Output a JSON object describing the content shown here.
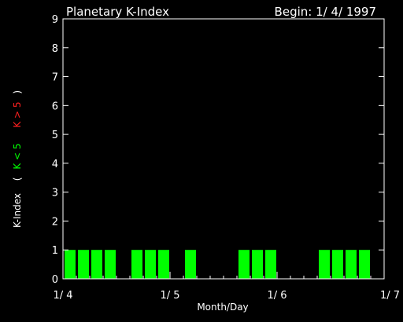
{
  "colors": {
    "background": "#000000",
    "axis": "#ffffff",
    "text": "#ffffff",
    "bar": "#00ff00",
    "green_label": "#00ff00",
    "red_label": "#ff2020"
  },
  "chart_data": {
    "type": "bar",
    "title": "Planetary K-Index",
    "subtitle": "Begin: 1/ 4/ 1997",
    "xlabel": "Month/Day",
    "ylabel": {
      "prefix": "K-Index",
      "open": "(",
      "green": "K < 5",
      "red": "K > 5",
      "close": ")"
    },
    "xlim": [
      0,
      24
    ],
    "ylim": [
      0,
      9
    ],
    "y_ticks": [
      0,
      1,
      2,
      3,
      4,
      5,
      6,
      7,
      8,
      9
    ],
    "x_ticks": [
      {
        "label": "1/ 4",
        "value": 0
      },
      {
        "label": "1/ 5",
        "value": 8
      },
      {
        "label": "1/ 6",
        "value": 16
      },
      {
        "label": "1/ 7",
        "value": 24
      }
    ],
    "x_minor_ticks": [
      1,
      2,
      3,
      4,
      5,
      6,
      7,
      9,
      10,
      11,
      12,
      13,
      14,
      15,
      17,
      18,
      19,
      20,
      21,
      22,
      23
    ],
    "values": [
      1,
      1,
      1,
      1,
      0,
      1,
      1,
      1,
      0,
      1,
      0,
      0,
      0,
      1,
      1,
      1,
      0,
      0,
      0,
      1,
      1,
      1,
      1,
      0
    ]
  }
}
